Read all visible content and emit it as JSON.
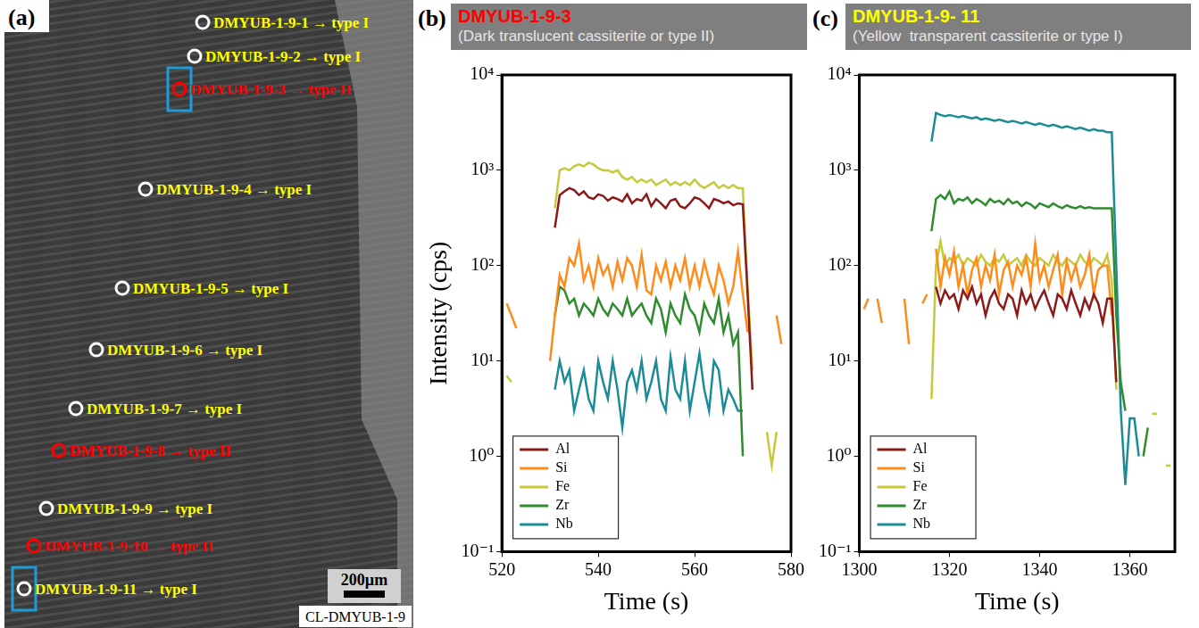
{
  "panel_a": {
    "letter": "(a)",
    "spots": [
      {
        "label": "DMYUB-1-9-1 → type I",
        "color": "#ffff00",
        "marker_color": "#ffffff",
        "highlighted": false
      },
      {
        "label": "DMYUB-1-9-2 → type I",
        "color": "#ffff00",
        "marker_color": "#ffffff",
        "highlighted": false
      },
      {
        "label": "DMYUB-1-9-3 → type II",
        "color": "#ff0000",
        "marker_color": "#ff0000",
        "highlighted": true
      },
      {
        "label": "DMYUB-1-9-4 → type I",
        "color": "#ffff00",
        "marker_color": "#ffffff",
        "highlighted": false
      },
      {
        "label": "DMYUB-1-9-5 → type I",
        "color": "#ffff00",
        "marker_color": "#ffffff",
        "highlighted": false
      },
      {
        "label": "DMYUB-1-9-6 → type I",
        "color": "#ffff00",
        "marker_color": "#ffffff",
        "highlighted": false
      },
      {
        "label": "DMYUB-1-9-7 → type I",
        "color": "#ffff00",
        "marker_color": "#ffffff",
        "highlighted": false
      },
      {
        "label": "DMYUB-1-9-8 → type II",
        "color": "#ff0000",
        "marker_color": "#ff0000",
        "highlighted": false
      },
      {
        "label": "DMYUB-1-9-9 → type I",
        "color": "#ffff00",
        "marker_color": "#ffffff",
        "highlighted": false
      },
      {
        "label": "DMYUB-1-9-10 → type II",
        "color": "#ff0000",
        "marker_color": "#ff0000",
        "highlighted": false
      },
      {
        "label": "DMYUB-1-9-11 → type I",
        "color": "#ffff00",
        "marker_color": "#ffffff",
        "highlighted": true
      }
    ],
    "scale_bar": "200µm",
    "image_label": "CL-DMYUB-1-9"
  },
  "chart_data": [
    {
      "type": "line",
      "letter": "(b)",
      "title": "DMYUB-1-9-3",
      "subtitle": "(Dark translucent cassiterite or type II)",
      "x_label": "Time (s)",
      "y_label": "Intensity (cps)",
      "log": "y",
      "grid": false,
      "legend": "lower left",
      "xlim": [
        520,
        580
      ],
      "xticks": [
        520,
        540,
        560,
        580
      ],
      "ylim": [
        0.1,
        10000
      ],
      "yticks": [
        {
          "value": 0.1,
          "label": "10⁻¹"
        },
        {
          "value": 1,
          "label": "10⁰"
        },
        {
          "value": 10,
          "label": "10¹"
        },
        {
          "value": 100,
          "label": "10²"
        },
        {
          "value": 1000,
          "label": "10³"
        },
        {
          "value": 10000,
          "label": "10⁴"
        }
      ],
      "x": [
        520,
        521,
        522,
        523,
        524,
        525,
        526,
        527,
        528,
        529,
        530,
        531,
        532,
        533,
        534,
        535,
        536,
        537,
        538,
        539,
        540,
        541,
        542,
        543,
        544,
        545,
        546,
        547,
        548,
        549,
        550,
        551,
        552,
        553,
        554,
        555,
        556,
        557,
        558,
        559,
        560,
        561,
        562,
        563,
        564,
        565,
        566,
        567,
        568,
        569,
        570,
        571,
        572,
        573,
        574,
        575,
        576,
        577,
        578
      ],
      "series": [
        {
          "name": "Al",
          "color": "#8b1a1a",
          "values": [
            null,
            null,
            null,
            null,
            null,
            null,
            null,
            null,
            null,
            null,
            null,
            250,
            550,
            600,
            650,
            620,
            550,
            600,
            520,
            500,
            560,
            540,
            480,
            520,
            500,
            470,
            560,
            450,
            500,
            480,
            560,
            420,
            500,
            450,
            400,
            480,
            500,
            420,
            400,
            450,
            520,
            500,
            450,
            400,
            500,
            480,
            450,
            470,
            430,
            450,
            440,
            50,
            5,
            null,
            null,
            null,
            null,
            null,
            null
          ]
        },
        {
          "name": "Si",
          "color": "#ff8c1a",
          "values": [
            null,
            40,
            30,
            22,
            null,
            null,
            null,
            null,
            null,
            null,
            10,
            30,
            80,
            60,
            120,
            100,
            170,
            70,
            100,
            60,
            120,
            80,
            100,
            60,
            110,
            70,
            120,
            100,
            60,
            130,
            55,
            50,
            100,
            70,
            110,
            60,
            100,
            70,
            120,
            60,
            100,
            60,
            110,
            70,
            50,
            100,
            70,
            40,
            60,
            140,
            50,
            20,
            null,
            null,
            null,
            null,
            null,
            30,
            15
          ]
        },
        {
          "name": "Fe",
          "color": "#c5c93a",
          "values": [
            null,
            7,
            6,
            null,
            null,
            null,
            null,
            null,
            null,
            null,
            null,
            400,
            1000,
            1050,
            1000,
            1100,
            1150,
            1100,
            1200,
            1150,
            1050,
            1000,
            1000,
            950,
            1000,
            850,
            800,
            850,
            750,
            800,
            750,
            800,
            700,
            750,
            800,
            700,
            750,
            700,
            750,
            700,
            800,
            700,
            650,
            700,
            750,
            650,
            700,
            650,
            700,
            650,
            650,
            60,
            8,
            null,
            null,
            1.8,
            0.8,
            1.8,
            null
          ]
        },
        {
          "name": "Zr",
          "color": "#2e8b2e",
          "values": [
            null,
            null,
            null,
            null,
            null,
            null,
            null,
            null,
            null,
            null,
            null,
            30,
            60,
            55,
            40,
            45,
            30,
            40,
            35,
            30,
            45,
            35,
            30,
            40,
            35,
            30,
            45,
            30,
            35,
            40,
            30,
            25,
            45,
            35,
            20,
            40,
            30,
            25,
            50,
            35,
            30,
            20,
            40,
            30,
            25,
            45,
            20,
            30,
            15,
            20,
            1,
            null,
            null,
            null,
            null,
            null,
            null,
            null,
            null
          ]
        },
        {
          "name": "Nb",
          "color": "#1a8c96",
          "values": [
            null,
            null,
            null,
            null,
            null,
            null,
            null,
            null,
            null,
            null,
            null,
            5,
            10,
            6,
            8,
            3,
            5,
            8,
            4,
            3,
            10,
            6,
            4,
            10,
            5,
            2,
            6,
            8,
            5,
            10,
            4,
            6,
            10,
            4,
            3,
            11,
            5,
            4,
            10,
            3,
            6,
            12,
            5,
            3,
            10,
            8,
            3,
            5,
            4,
            3,
            3,
            null,
            null,
            null,
            null,
            null,
            null,
            null,
            null
          ]
        }
      ]
    },
    {
      "type": "line",
      "letter": "(c)",
      "title": "DMYUB-1-9- 11",
      "subtitle": "(Yellow  transparent cassiterite or type I)",
      "x_label": "Time (s)",
      "log": "y",
      "grid": false,
      "legend": "lower left",
      "xlim": [
        1300,
        1370
      ],
      "xticks": [
        1300,
        1320,
        1340,
        1360
      ],
      "ylim": [
        0.1,
        10000
      ],
      "yticks": [
        {
          "value": 0.1,
          "label": "10⁻¹"
        },
        {
          "value": 1,
          "label": "10⁰"
        },
        {
          "value": 10,
          "label": "10¹"
        },
        {
          "value": 100,
          "label": "10²"
        },
        {
          "value": 1000,
          "label": "10³"
        },
        {
          "value": 10000,
          "label": "10⁴"
        }
      ],
      "x": [
        1300,
        1301,
        1302,
        1303,
        1304,
        1305,
        1306,
        1307,
        1308,
        1309,
        1310,
        1311,
        1312,
        1313,
        1314,
        1315,
        1316,
        1317,
        1318,
        1319,
        1320,
        1321,
        1322,
        1323,
        1324,
        1325,
        1326,
        1327,
        1328,
        1329,
        1330,
        1331,
        1332,
        1333,
        1334,
        1335,
        1336,
        1337,
        1338,
        1339,
        1340,
        1341,
        1342,
        1343,
        1344,
        1345,
        1346,
        1347,
        1348,
        1349,
        1350,
        1351,
        1352,
        1353,
        1354,
        1355,
        1356,
        1357,
        1358,
        1359,
        1360,
        1361,
        1362,
        1363,
        1364,
        1365,
        1366,
        1367,
        1368,
        1369,
        1370
      ],
      "series": [
        {
          "name": "Al",
          "color": "#8b1a1a",
          "values": [
            null,
            null,
            null,
            null,
            null,
            null,
            null,
            null,
            null,
            null,
            null,
            null,
            null,
            null,
            null,
            null,
            null,
            60,
            40,
            55,
            45,
            50,
            35,
            55,
            45,
            60,
            40,
            50,
            30,
            45,
            55,
            40,
            35,
            50,
            45,
            30,
            55,
            40,
            50,
            35,
            45,
            55,
            40,
            30,
            50,
            45,
            35,
            55,
            40,
            30,
            45,
            35,
            50,
            40,
            25,
            45,
            45,
            6,
            null,
            null,
            null,
            null,
            null,
            null,
            null,
            null,
            null,
            null,
            null,
            null,
            null
          ]
        },
        {
          "name": "Si",
          "color": "#ff8c1a",
          "values": [
            null,
            35,
            45,
            null,
            45,
            25,
            null,
            null,
            null,
            null,
            45,
            15,
            null,
            null,
            40,
            50,
            null,
            150,
            60,
            120,
            80,
            140,
            60,
            100,
            50,
            90,
            120,
            60,
            100,
            70,
            130,
            50,
            90,
            110,
            60,
            100,
            80,
            120,
            60,
            170,
            70,
            100,
            60,
            90,
            130,
            50,
            110,
            70,
            100,
            60,
            80,
            130,
            50,
            90,
            100,
            100,
            30,
            null,
            null,
            null,
            null,
            null,
            null,
            null,
            null,
            null,
            null,
            null,
            null,
            null,
            null
          ]
        },
        {
          "name": "Fe",
          "color": "#c5c93a",
          "values": [
            null,
            null,
            null,
            null,
            null,
            null,
            null,
            null,
            null,
            null,
            null,
            null,
            null,
            null,
            null,
            null,
            4,
            100,
            180,
            100,
            120,
            110,
            130,
            100,
            120,
            110,
            100,
            130,
            110,
            100,
            120,
            110,
            130,
            100,
            110,
            120,
            100,
            130,
            110,
            100,
            120,
            110,
            100,
            130,
            110,
            100,
            120,
            110,
            100,
            130,
            110,
            100,
            120,
            110,
            100,
            130,
            70,
            5,
            null,
            null,
            null,
            null,
            null,
            null,
            null,
            2.8,
            2.8,
            null,
            0.8,
            0.8,
            null
          ]
        },
        {
          "name": "Zr",
          "color": "#2e8b2e",
          "values": [
            null,
            null,
            null,
            null,
            null,
            null,
            null,
            null,
            null,
            null,
            null,
            null,
            null,
            null,
            null,
            null,
            230,
            500,
            550,
            500,
            600,
            450,
            500,
            480,
            520,
            450,
            500,
            470,
            430,
            500,
            460,
            480,
            440,
            500,
            450,
            470,
            420,
            460,
            440,
            400,
            450,
            430,
            410,
            450,
            420,
            400,
            430,
            410,
            400,
            420,
            400,
            410,
            400,
            400,
            400,
            400,
            400,
            30,
            6,
            3,
            null,
            null,
            null,
            1,
            2,
            null,
            null,
            null,
            null,
            null,
            null
          ]
        },
        {
          "name": "Nb",
          "color": "#1a8c96",
          "values": [
            null,
            null,
            null,
            null,
            null,
            null,
            null,
            null,
            null,
            null,
            null,
            null,
            null,
            null,
            null,
            null,
            2000,
            4000,
            3800,
            3700,
            3800,
            3700,
            3600,
            3700,
            3600,
            3500,
            3600,
            3400,
            3500,
            3400,
            3300,
            3400,
            3300,
            3200,
            3300,
            3200,
            3100,
            3200,
            3100,
            3000,
            3100,
            3000,
            2900,
            3000,
            2900,
            2800,
            2900,
            2800,
            2700,
            2800,
            2700,
            2600,
            2700,
            2600,
            2600,
            2500,
            2500,
            100,
            3,
            0.5,
            2.5,
            2.5,
            1,
            null,
            null,
            null,
            null,
            null,
            null,
            null,
            null
          ]
        }
      ]
    }
  ]
}
